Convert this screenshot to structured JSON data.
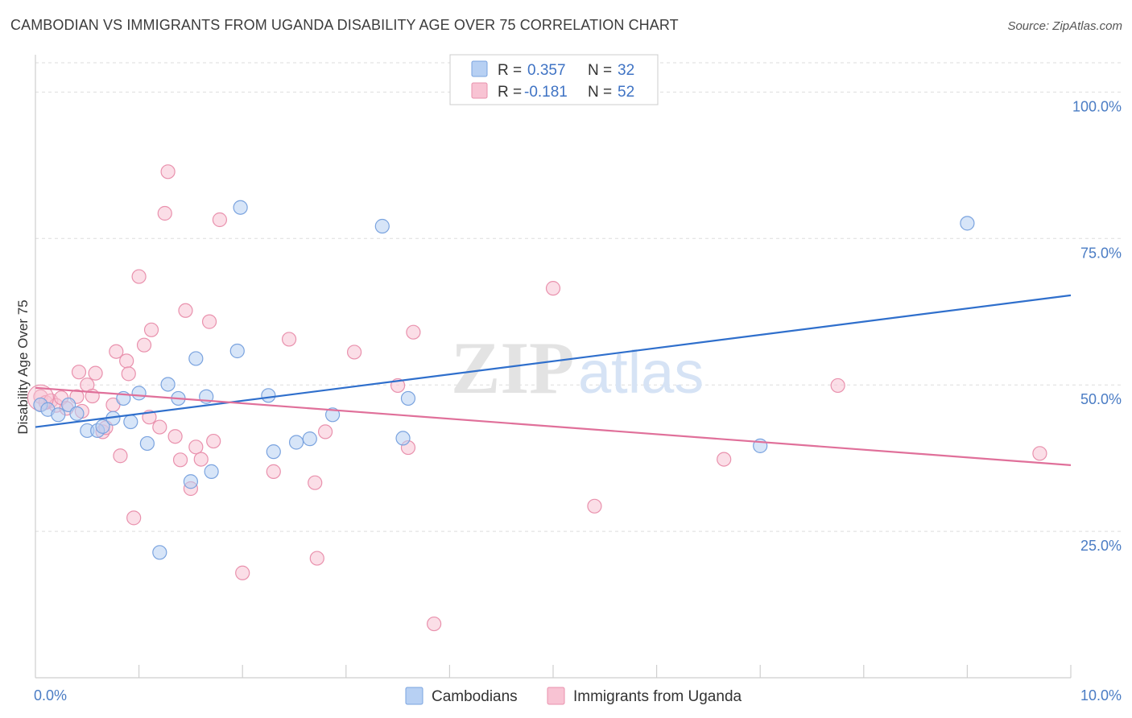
{
  "title": "CAMBODIAN VS IMMIGRANTS FROM UGANDA DISABILITY AGE OVER 75 CORRELATION CHART",
  "source": "Source: ZipAtlas.com",
  "watermark_zip": "ZIP",
  "watermark_atlas": "atlas",
  "colors": {
    "blue_fill": "#b7d0f3",
    "blue_stroke": "#7aa3df",
    "blue_line": "#2f6fcc",
    "pink_fill": "#f8c3d3",
    "pink_stroke": "#e991ad",
    "pink_line": "#e0709a",
    "tick_label": "#4a7cc4",
    "grid": "#dddddd"
  },
  "chart_data": {
    "type": "scatter",
    "ylabel": "Disability Age Over 75",
    "xlim": [
      0,
      10
    ],
    "ylim": [
      0,
      105
    ],
    "yticks": [
      25,
      50,
      75,
      100
    ],
    "ytick_labels": [
      "25.0%",
      "50.0%",
      "75.0%",
      "100.0%"
    ],
    "xtick_labels": [
      "0.0%",
      "10.0%"
    ],
    "legend": [
      {
        "r_label": "R =",
        "r_value": "0.357",
        "n_label": "N =",
        "n_value": "32"
      },
      {
        "r_label": "R =",
        "r_value": "-0.181",
        "n_label": "N =",
        "n_value": "52"
      }
    ],
    "series": [
      {
        "name": "Cambodians",
        "trend": {
          "x": [
            0,
            10
          ],
          "y": [
            42.8,
            65.3
          ]
        },
        "points": [
          {
            "x": 0.05,
            "y": 46.6
          },
          {
            "x": 0.12,
            "y": 45.8
          },
          {
            "x": 0.22,
            "y": 44.9
          },
          {
            "x": 0.32,
            "y": 46.6
          },
          {
            "x": 0.4,
            "y": 45.1
          },
          {
            "x": 0.5,
            "y": 42.2
          },
          {
            "x": 0.6,
            "y": 42.2
          },
          {
            "x": 0.65,
            "y": 42.9
          },
          {
            "x": 0.75,
            "y": 44.3
          },
          {
            "x": 0.85,
            "y": 47.7
          },
          {
            "x": 0.92,
            "y": 43.7
          },
          {
            "x": 1.0,
            "y": 48.6
          },
          {
            "x": 1.08,
            "y": 40.0
          },
          {
            "x": 1.2,
            "y": 21.4
          },
          {
            "x": 1.28,
            "y": 50.1
          },
          {
            "x": 1.38,
            "y": 47.7
          },
          {
            "x": 1.5,
            "y": 33.5
          },
          {
            "x": 1.55,
            "y": 54.5
          },
          {
            "x": 1.65,
            "y": 48.0
          },
          {
            "x": 1.7,
            "y": 35.2
          },
          {
            "x": 1.95,
            "y": 55.8
          },
          {
            "x": 1.98,
            "y": 80.3
          },
          {
            "x": 2.25,
            "y": 48.2
          },
          {
            "x": 2.3,
            "y": 38.6
          },
          {
            "x": 2.52,
            "y": 40.2
          },
          {
            "x": 2.65,
            "y": 40.8
          },
          {
            "x": 2.87,
            "y": 44.9
          },
          {
            "x": 3.35,
            "y": 77.1
          },
          {
            "x": 3.55,
            "y": 40.9
          },
          {
            "x": 3.6,
            "y": 47.7
          },
          {
            "x": 7.0,
            "y": 39.6
          },
          {
            "x": 9.0,
            "y": 77.6
          }
        ]
      },
      {
        "name": "Immigrants from Uganda",
        "trend": {
          "x": [
            0,
            10
          ],
          "y": [
            49.5,
            36.3
          ]
        },
        "points": [
          {
            "x": 0.05,
            "y": 48.0
          },
          {
            "x": 0.1,
            "y": 47.0
          },
          {
            "x": 0.15,
            "y": 47.3
          },
          {
            "x": 0.2,
            "y": 46.5
          },
          {
            "x": 0.25,
            "y": 47.8
          },
          {
            "x": 0.3,
            "y": 46.0
          },
          {
            "x": 0.4,
            "y": 48.0
          },
          {
            "x": 0.42,
            "y": 52.2
          },
          {
            "x": 0.45,
            "y": 45.5
          },
          {
            "x": 0.5,
            "y": 50.0
          },
          {
            "x": 0.55,
            "y": 48.1
          },
          {
            "x": 0.58,
            "y": 52.0
          },
          {
            "x": 0.65,
            "y": 42.0
          },
          {
            "x": 0.68,
            "y": 42.7
          },
          {
            "x": 0.75,
            "y": 46.6
          },
          {
            "x": 0.78,
            "y": 55.7
          },
          {
            "x": 0.82,
            "y": 37.9
          },
          {
            "x": 0.88,
            "y": 54.1
          },
          {
            "x": 0.9,
            "y": 51.9
          },
          {
            "x": 0.95,
            "y": 27.3
          },
          {
            "x": 1.0,
            "y": 68.5
          },
          {
            "x": 1.05,
            "y": 56.8
          },
          {
            "x": 1.1,
            "y": 44.5
          },
          {
            "x": 1.12,
            "y": 59.4
          },
          {
            "x": 1.2,
            "y": 42.8
          },
          {
            "x": 1.25,
            "y": 79.3
          },
          {
            "x": 1.28,
            "y": 86.4
          },
          {
            "x": 1.35,
            "y": 41.2
          },
          {
            "x": 1.4,
            "y": 37.2
          },
          {
            "x": 1.45,
            "y": 62.7
          },
          {
            "x": 1.5,
            "y": 32.3
          },
          {
            "x": 1.55,
            "y": 39.4
          },
          {
            "x": 1.6,
            "y": 37.3
          },
          {
            "x": 1.68,
            "y": 60.8
          },
          {
            "x": 1.72,
            "y": 40.4
          },
          {
            "x": 1.78,
            "y": 78.2
          },
          {
            "x": 2.0,
            "y": 17.9
          },
          {
            "x": 2.3,
            "y": 35.2
          },
          {
            "x": 2.45,
            "y": 57.8
          },
          {
            "x": 2.7,
            "y": 33.3
          },
          {
            "x": 2.8,
            "y": 42.0
          },
          {
            "x": 2.72,
            "y": 20.4
          },
          {
            "x": 3.08,
            "y": 55.6
          },
          {
            "x": 3.5,
            "y": 49.9
          },
          {
            "x": 3.6,
            "y": 39.3
          },
          {
            "x": 3.65,
            "y": 59.0
          },
          {
            "x": 3.85,
            "y": 9.2
          },
          {
            "x": 5.0,
            "y": 66.5
          },
          {
            "x": 5.4,
            "y": 29.3
          },
          {
            "x": 6.65,
            "y": 37.3
          },
          {
            "x": 7.75,
            "y": 49.9
          },
          {
            "x": 9.7,
            "y": 38.3
          }
        ]
      }
    ]
  }
}
